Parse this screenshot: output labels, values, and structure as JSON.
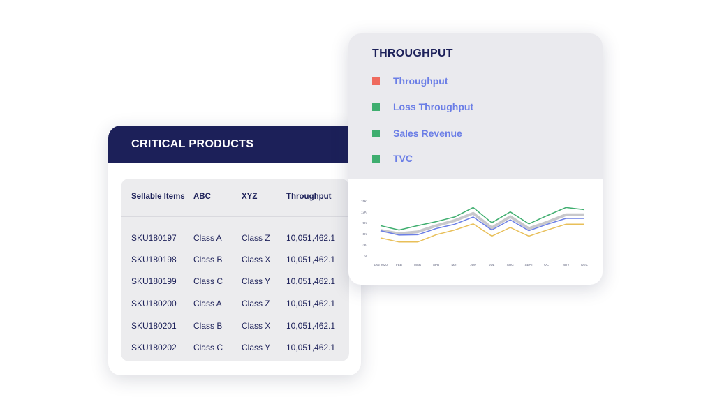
{
  "products": {
    "title": "CRITICAL PRODUCTS",
    "columns": [
      "Sellable Items",
      "ABC",
      "XYZ",
      "Throughput"
    ],
    "rows": [
      {
        "sku": "SKU180197",
        "abc": "Class A",
        "xyz": "Class Z",
        "throughput": "10,051,462.1"
      },
      {
        "sku": "SKU180198",
        "abc": "Class B",
        "xyz": "Class X",
        "throughput": "10,051,462.1"
      },
      {
        "sku": "SKU180199",
        "abc": "Class C",
        "xyz": "Class Y",
        "throughput": "10,051,462.1"
      },
      {
        "sku": "SKU180200",
        "abc": "Class A",
        "xyz": "Class Z",
        "throughput": "10,051,462.1"
      },
      {
        "sku": "SKU180201",
        "abc": "Class B",
        "xyz": "Class X",
        "throughput": "10,051,462.1"
      },
      {
        "sku": "SKU180202",
        "abc": "Class C",
        "xyz": "Class Y",
        "throughput": "10,051,462.1"
      }
    ]
  },
  "throughput": {
    "title": "THROUGHPUT",
    "legend": [
      {
        "label": "Throughput",
        "color": "#ef6a5e"
      },
      {
        "label": "Loss Throughput",
        "color": "#3fae6f"
      },
      {
        "label": "Sales Revenue",
        "color": "#3fae6f"
      },
      {
        "label": "TVC",
        "color": "#3fae6f"
      }
    ]
  },
  "chart_data": {
    "type": "line",
    "categories": [
      "JAN 2020",
      "FEB",
      "MAR",
      "APR",
      "MAY",
      "JUN",
      "JUL",
      "AUG",
      "SEPT",
      "OCT",
      "NOV",
      "DEC"
    ],
    "y_ticks": [
      "15K",
      "12K",
      "9K",
      "6K",
      "3K",
      "0"
    ],
    "ylim": [
      0,
      15000
    ],
    "grid": false,
    "series": [
      {
        "color": "#3fae6f",
        "values": [
          8200,
          7000,
          8200,
          9300,
          10600,
          13200,
          9000,
          12000,
          8700,
          11000,
          13200,
          12600
        ]
      },
      {
        "color": "#c8c8cc",
        "values": [
          6900,
          6000,
          6500,
          8200,
          9600,
          11600,
          7600,
          10700,
          7400,
          9200,
          11200,
          11200
        ]
      },
      {
        "color": "#6b7ee6",
        "values": [
          6800,
          5600,
          5700,
          7400,
          8600,
          10600,
          7000,
          9800,
          6800,
          8600,
          10200,
          10200
        ]
      },
      {
        "color": "#e8bf58",
        "values": [
          4800,
          3700,
          3700,
          5700,
          7000,
          8700,
          5300,
          7700,
          5300,
          7000,
          8600,
          8600
        ]
      }
    ]
  }
}
